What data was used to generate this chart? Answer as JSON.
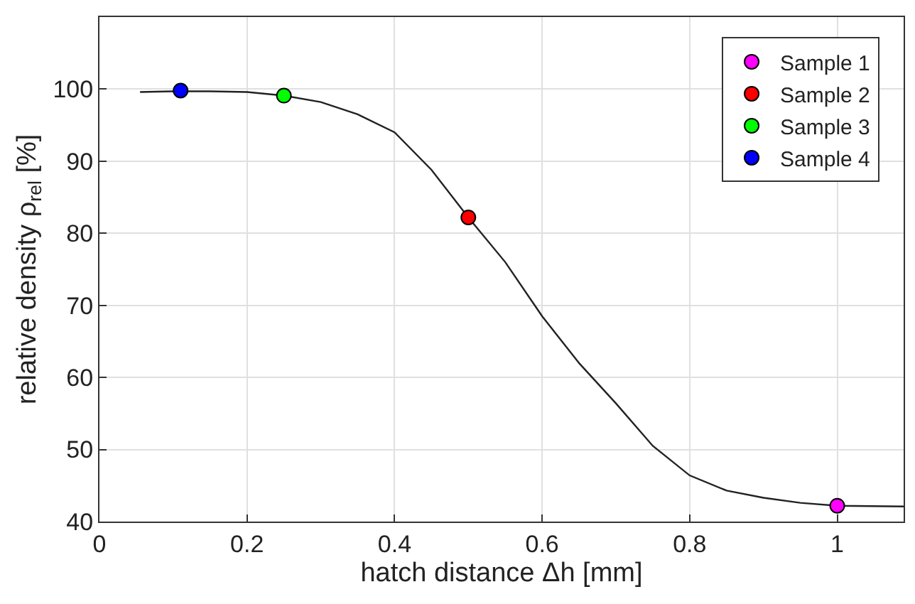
{
  "chart_data": {
    "type": "scatter",
    "xlabel": "hatch distance Δh [mm]",
    "ylabel": "relative density ρ$_{rel}$ [%]",
    "xlim": [
      0,
      1.09
    ],
    "ylim": [
      40,
      110
    ],
    "xticks": [
      0,
      0.2,
      0.4,
      0.6,
      0.8,
      1
    ],
    "yticks": [
      40,
      50,
      60,
      70,
      80,
      90,
      100
    ],
    "grid": true,
    "legend": "top right",
    "marker": "circle",
    "series": [
      {
        "type": "line",
        "color": "#222222",
        "line_style": "solid",
        "marker": "none",
        "x": [
          0.055,
          0.1,
          0.15,
          0.2,
          0.25,
          0.3,
          0.35,
          0.4,
          0.45,
          0.5,
          0.55,
          0.6,
          0.65,
          0.7,
          0.75,
          0.8,
          0.85,
          0.9,
          0.95,
          1.0,
          1.09
        ],
        "values": [
          99.6,
          99.7,
          99.7,
          99.6,
          99.1,
          98.2,
          96.5,
          94,
          88.8,
          82.2,
          76,
          68.5,
          62,
          56.4,
          50.5,
          46.4,
          44.3,
          43.3,
          42.6,
          42.2,
          42.1
        ]
      },
      {
        "name": "Sample 1",
        "color": "#ff00ff",
        "x": [
          1.0
        ],
        "values": [
          42.2
        ]
      },
      {
        "name": "Sample 2",
        "color": "#ff0000",
        "x": [
          0.5
        ],
        "values": [
          82.2
        ]
      },
      {
        "name": "Sample 3",
        "color": "#00ff00",
        "x": [
          0.25
        ],
        "values": [
          99.1
        ]
      },
      {
        "name": "Sample 4",
        "color": "#0000ff",
        "x": [
          0.11
        ],
        "values": [
          99.8
        ]
      }
    ]
  }
}
